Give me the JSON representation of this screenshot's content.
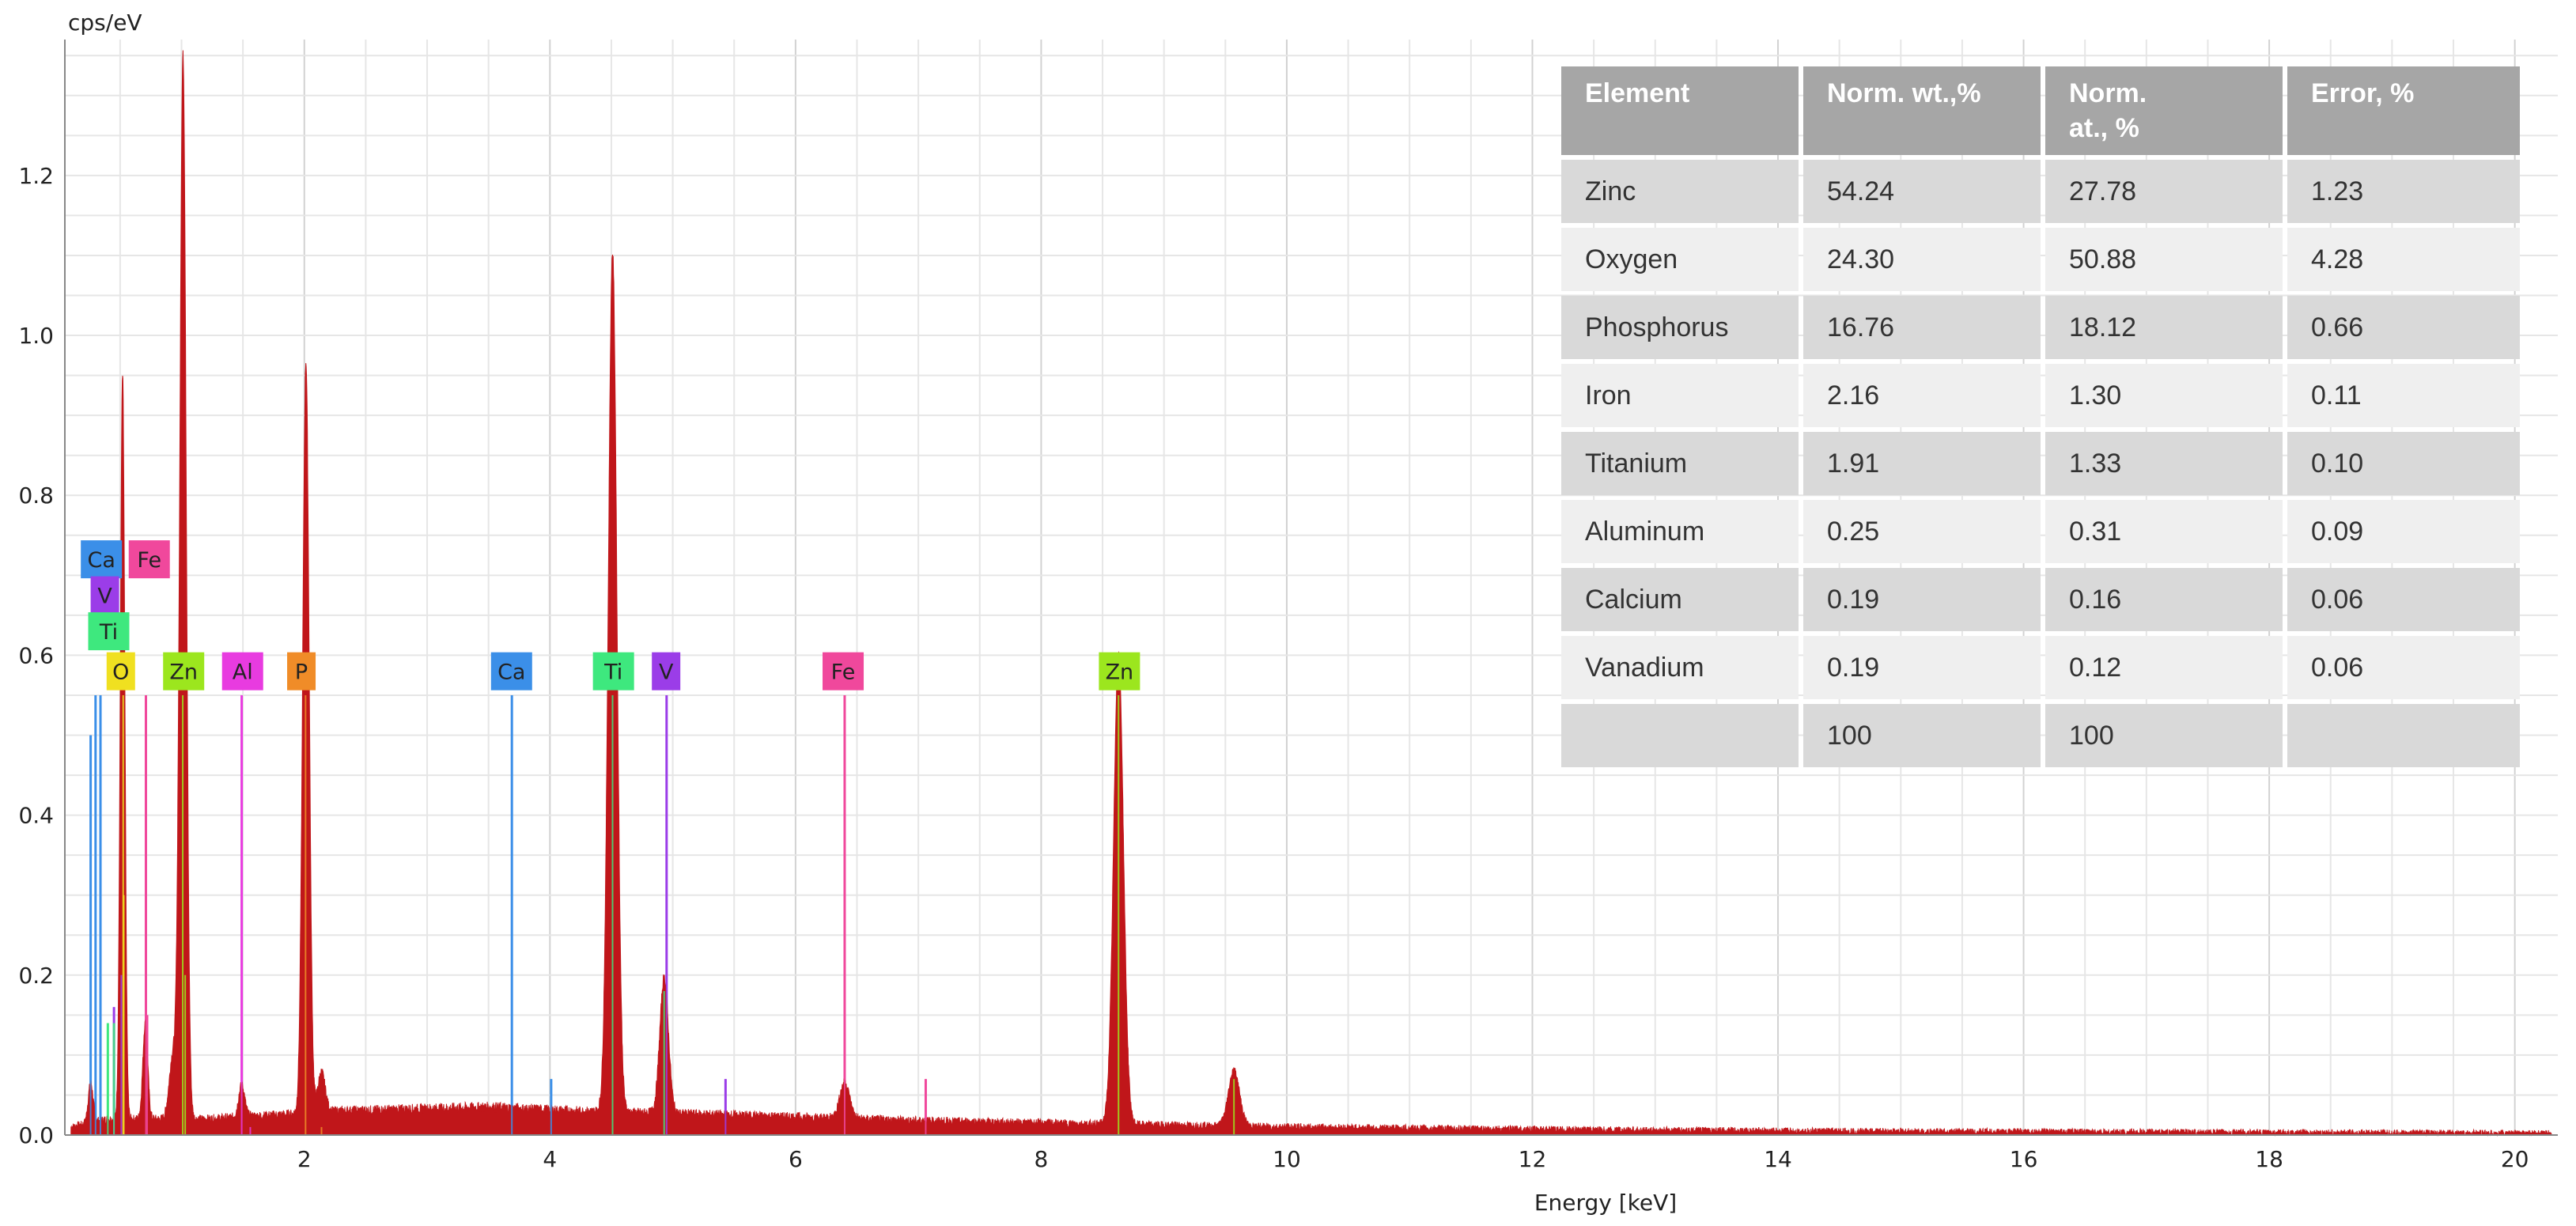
{
  "chart_data": {
    "type": "line",
    "title": "",
    "ylabel": "cps/eV",
    "xlabel": "Energy [keV]",
    "xlim": [
      0.05,
      20.35
    ],
    "ylim": [
      0,
      1.37
    ],
    "x_ticks": [
      2,
      4,
      6,
      8,
      10,
      12,
      14,
      16,
      18,
      20
    ],
    "y_ticks": [
      0.0,
      0.2,
      0.4,
      0.6,
      0.8,
      1.0,
      1.2
    ],
    "y_tick_labels": [
      "0.0",
      "0.2",
      "0.4",
      "0.6",
      "0.8",
      "1.0",
      "1.2"
    ],
    "grid": true,
    "spectrum_color": "#c0161a",
    "background": [
      [
        0.1,
        0.01
      ],
      [
        0.4,
        0.02
      ],
      [
        1.2,
        0.02
      ],
      [
        2.3,
        0.03
      ],
      [
        3.5,
        0.035
      ],
      [
        4.2,
        0.03
      ],
      [
        5.5,
        0.025
      ],
      [
        7.0,
        0.018
      ],
      [
        8.0,
        0.015
      ],
      [
        10.0,
        0.01
      ],
      [
        12.0,
        0.007
      ],
      [
        14.0,
        0.005
      ],
      [
        16.0,
        0.004
      ],
      [
        18.0,
        0.003
      ],
      [
        20.3,
        0.002
      ]
    ],
    "peaks": [
      {
        "x": 0.26,
        "height": 0.05,
        "width": 0.02
      },
      {
        "x": 0.52,
        "height": 0.93,
        "width": 0.018
      },
      {
        "x": 0.705,
        "height": 0.12,
        "width": 0.02
      },
      {
        "x": 0.93,
        "height": 0.08,
        "width": 0.03
      },
      {
        "x": 1.012,
        "height": 1.33,
        "width": 0.026
      },
      {
        "x": 1.49,
        "height": 0.04,
        "width": 0.025
      },
      {
        "x": 2.013,
        "height": 0.94,
        "width": 0.026
      },
      {
        "x": 2.14,
        "height": 0.05,
        "width": 0.03
      },
      {
        "x": 4.51,
        "height": 1.075,
        "width": 0.035
      },
      {
        "x": 4.93,
        "height": 0.17,
        "width": 0.035
      },
      {
        "x": 6.4,
        "height": 0.045,
        "width": 0.04
      },
      {
        "x": 8.63,
        "height": 0.59,
        "width": 0.04
      },
      {
        "x": 9.57,
        "height": 0.07,
        "width": 0.045
      }
    ],
    "element_markers": [
      {
        "element": "Ca",
        "color": "#3b8fe8",
        "label_x": 0.18,
        "label_y": 0.72,
        "lines": [
          [
            0.26,
            0.5
          ],
          [
            0.3,
            0.55
          ],
          [
            0.34,
            0.55
          ],
          [
            3.69,
            0.55
          ],
          [
            4.01,
            0.07
          ]
        ]
      },
      {
        "element": "Fe",
        "color": "#f0489c",
        "label_x": 0.57,
        "label_y": 0.72,
        "lines": [
          [
            0.71,
            0.55
          ],
          [
            0.72,
            0.15
          ],
          [
            6.4,
            0.55
          ],
          [
            7.06,
            0.07
          ]
        ]
      },
      {
        "element": "V",
        "color": "#9b3de8",
        "label_x": 0.26,
        "label_y": 0.675,
        "lines": [
          [
            0.45,
            0.16
          ],
          [
            0.51,
            0.2
          ],
          [
            4.95,
            0.55
          ],
          [
            5.43,
            0.07
          ]
        ]
      },
      {
        "element": "Ti",
        "color": "#3ee87e",
        "label_x": 0.24,
        "label_y": 0.63,
        "lines": [
          [
            0.4,
            0.14
          ],
          [
            0.45,
            0.14
          ],
          [
            4.51,
            0.55
          ],
          [
            4.93,
            0.18
          ]
        ]
      },
      {
        "element": "O",
        "color": "#f0e020",
        "label_x": 0.39,
        "label_y": 0.58,
        "lines": [
          [
            0.525,
            0.55
          ],
          [
            0.53,
            0.3
          ]
        ]
      },
      {
        "element": "Zn",
        "color": "#9ce61e",
        "label_x": 0.85,
        "label_y": 0.58,
        "lines": [
          [
            1.01,
            0.55
          ],
          [
            1.03,
            0.2
          ],
          [
            8.63,
            0.55
          ],
          [
            9.57,
            0.07
          ]
        ]
      },
      {
        "element": "Al",
        "color": "#e83be0",
        "label_x": 1.33,
        "label_y": 0.58,
        "lines": [
          [
            1.49,
            0.55
          ],
          [
            1.56,
            0.01
          ]
        ]
      },
      {
        "element": "P",
        "color": "#f08c28",
        "label_x": 1.86,
        "label_y": 0.58,
        "lines": [
          [
            2.01,
            0.55
          ],
          [
            2.14,
            0.01
          ]
        ]
      },
      {
        "element": "Ca",
        "color": "#3b8fe8",
        "label_x": 3.52,
        "label_y": 0.58,
        "lines": []
      },
      {
        "element": "Ti",
        "color": "#3ee87e",
        "label_x": 4.35,
        "label_y": 0.58,
        "lines": []
      },
      {
        "element": "V",
        "color": "#9b3de8",
        "label_x": 4.83,
        "label_y": 0.58,
        "lines": []
      },
      {
        "element": "Fe",
        "color": "#f0489c",
        "label_x": 6.22,
        "label_y": 0.58,
        "lines": []
      },
      {
        "element": "Zn",
        "color": "#9ce61e",
        "label_x": 8.47,
        "label_y": 0.58,
        "lines": []
      }
    ]
  },
  "table": {
    "headers": [
      "Element",
      "Norm. wt.,%",
      "Norm.\nat., %",
      "Error, %"
    ],
    "rows": [
      [
        "Zinc",
        "54.24",
        "27.78",
        "1.23"
      ],
      [
        "Oxygen",
        "24.30",
        "50.88",
        "4.28"
      ],
      [
        "Phosphorus",
        "16.76",
        "18.12",
        "0.66"
      ],
      [
        "Iron",
        "2.16",
        "1.30",
        "0.11"
      ],
      [
        "Titanium",
        "1.91",
        "1.33",
        "0.10"
      ],
      [
        "Aluminum",
        "0.25",
        "0.31",
        "0.09"
      ],
      [
        "Calcium",
        "0.19",
        "0.16",
        "0.06"
      ],
      [
        "Vanadium",
        "0.19",
        "0.12",
        "0.06"
      ],
      [
        "",
        "100",
        "100",
        ""
      ]
    ]
  }
}
